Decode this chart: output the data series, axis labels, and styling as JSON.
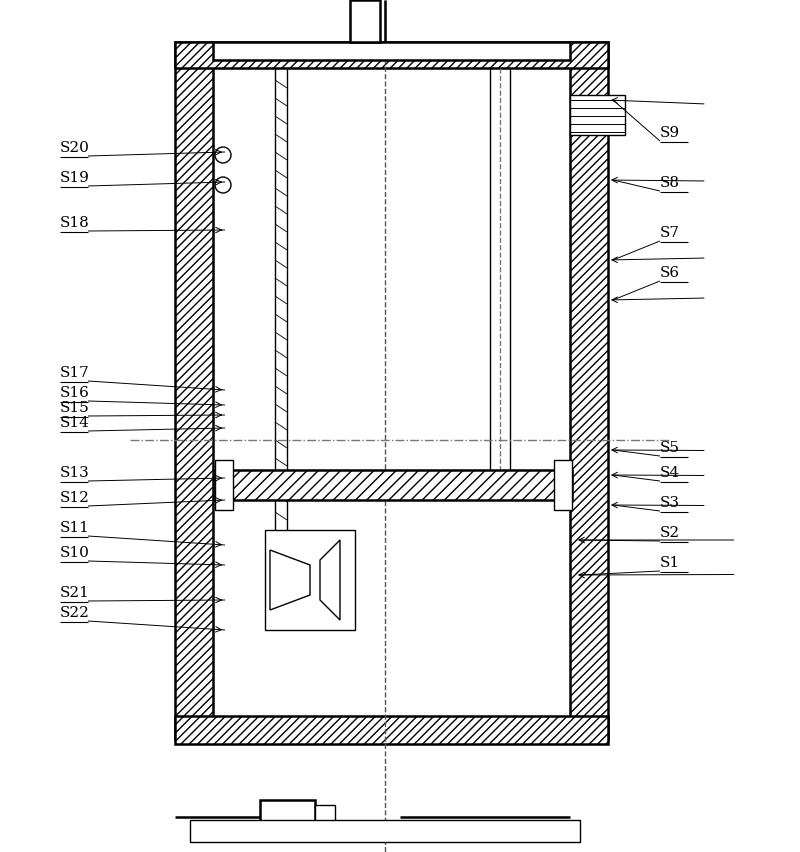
{
  "bg_color": "#ffffff",
  "line_color": "#000000",
  "hatch_color": "#000000",
  "labels_left": [
    "S20",
    "S19",
    "S18",
    "S17",
    "S16",
    "S15",
    "S14",
    "S13",
    "S12",
    "S11",
    "S10",
    "S21",
    "S22"
  ],
  "labels_right": [
    "S9",
    "S8",
    "S7",
    "S6",
    "S5",
    "S4",
    "S3",
    "S2",
    "S1"
  ],
  "title": "",
  "lw": 1.0,
  "lw_thick": 1.8
}
